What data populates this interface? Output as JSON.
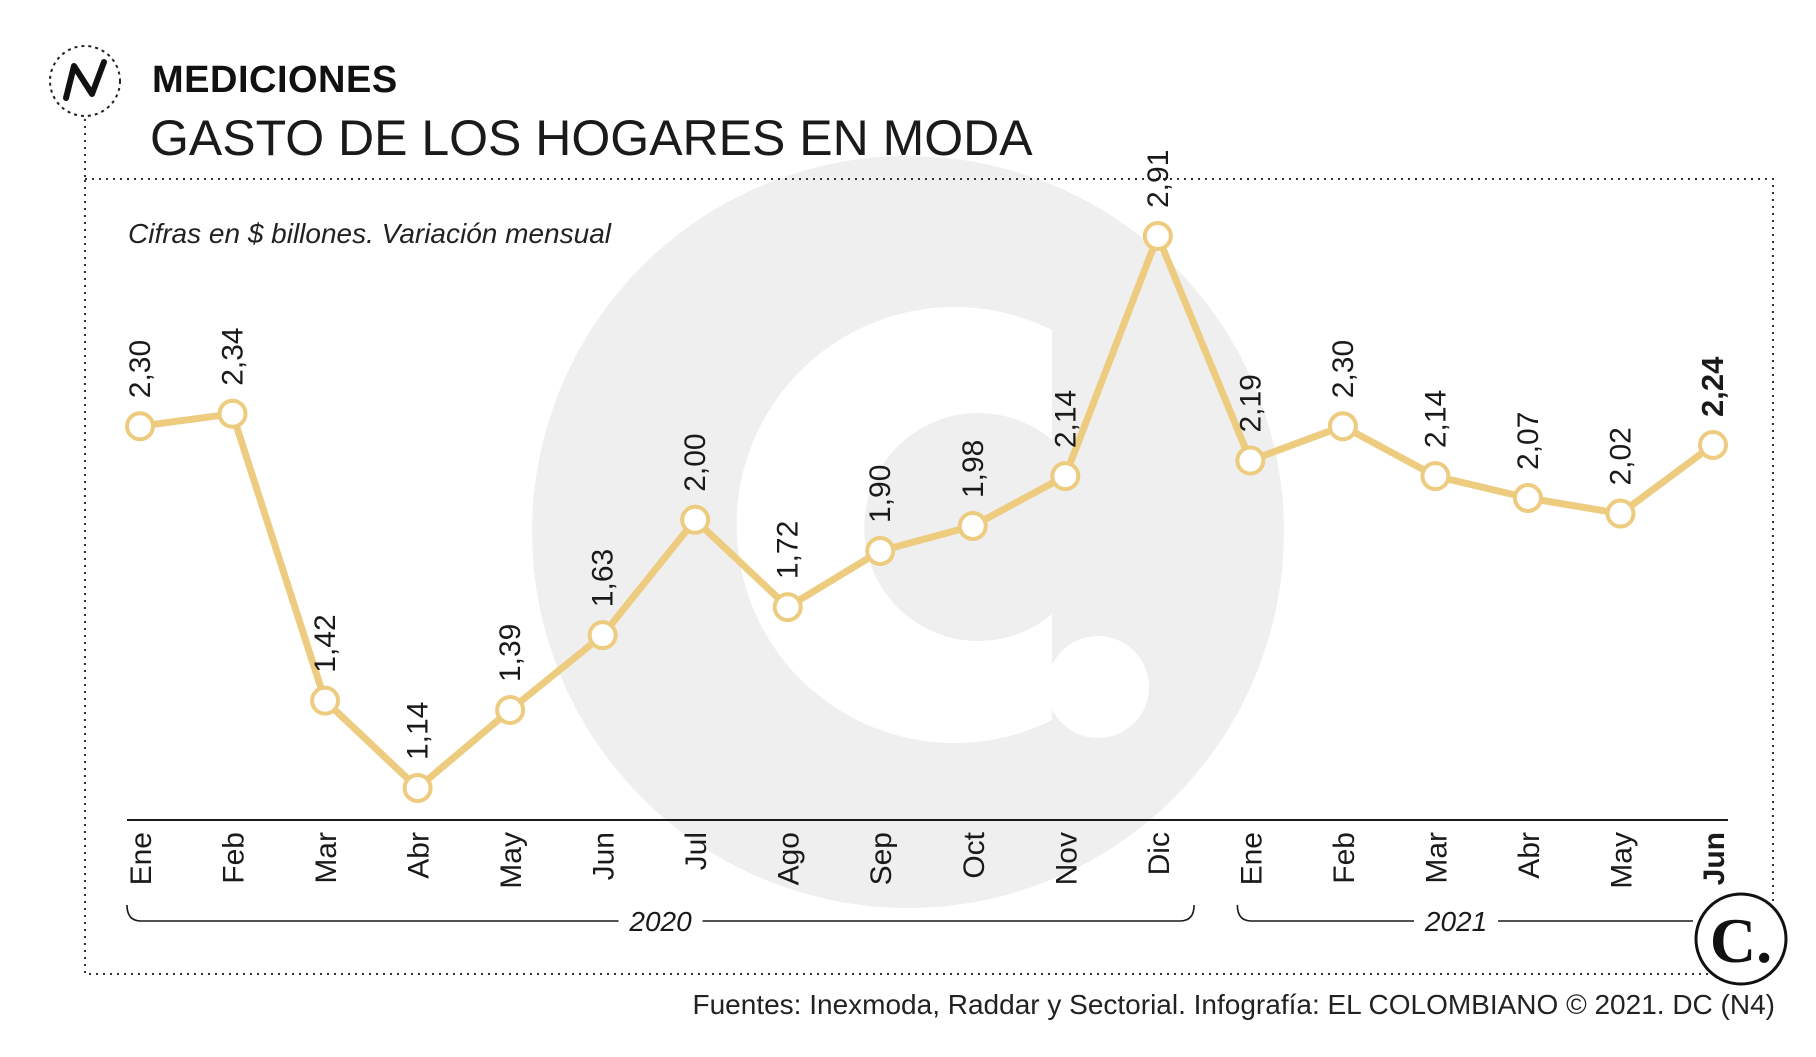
{
  "header": {
    "section": "MEDICIONES",
    "title": "GASTO DE LOS HOGARES EN MODA",
    "section_logo": "N",
    "section_logo_icon": "n-zigzag-icon"
  },
  "brand_logo": {
    "letter": "C.",
    "icon": "el-colombiano-c-logo",
    "watermark_icon": "el-colombiano-c-watermark"
  },
  "footer": {
    "source": "Fuentes: Inexmoda, Raddar y Sectorial. Infografía: EL COLOMBIANO © 2021. DC (N4)"
  },
  "colors": {
    "line": "#EDCB7F",
    "marker_fill": "#FFFFFF",
    "watermark": "#EFEFF0",
    "axis": "#1A1A1A"
  },
  "chart_data": {
    "type": "line",
    "subtitle": "Cifras en $ billones. Variación mensual",
    "categories": [
      "Ene",
      "Feb",
      "Mar",
      "Abr",
      "May",
      "Jun",
      "Jul",
      "Ago",
      "Sep",
      "Oct",
      "Nov",
      "Dic",
      "Ene",
      "Feb",
      "Mar",
      "Abr",
      "May",
      "Jun"
    ],
    "values": [
      2.3,
      2.34,
      1.42,
      1.14,
      1.39,
      1.63,
      2.0,
      1.72,
      1.9,
      1.98,
      2.14,
      2.91,
      2.19,
      2.3,
      2.14,
      2.07,
      2.02,
      2.24
    ],
    "value_labels": [
      "2,30",
      "2,34",
      "1,42",
      "1,14",
      "1,39",
      "1,63",
      "2,00",
      "1,72",
      "1,90",
      "1,98",
      "2,14",
      "2,91",
      "2,19",
      "2,30",
      "2,14",
      "2,07",
      "2,02",
      "2,24"
    ],
    "highlight_last": true,
    "groups": [
      {
        "label": "2020",
        "start": 0,
        "end": 11
      },
      {
        "label": "2021",
        "start": 12,
        "end": 17
      }
    ],
    "ylim": [
      1.14,
      2.91
    ],
    "grid": false,
    "legend": "none"
  }
}
